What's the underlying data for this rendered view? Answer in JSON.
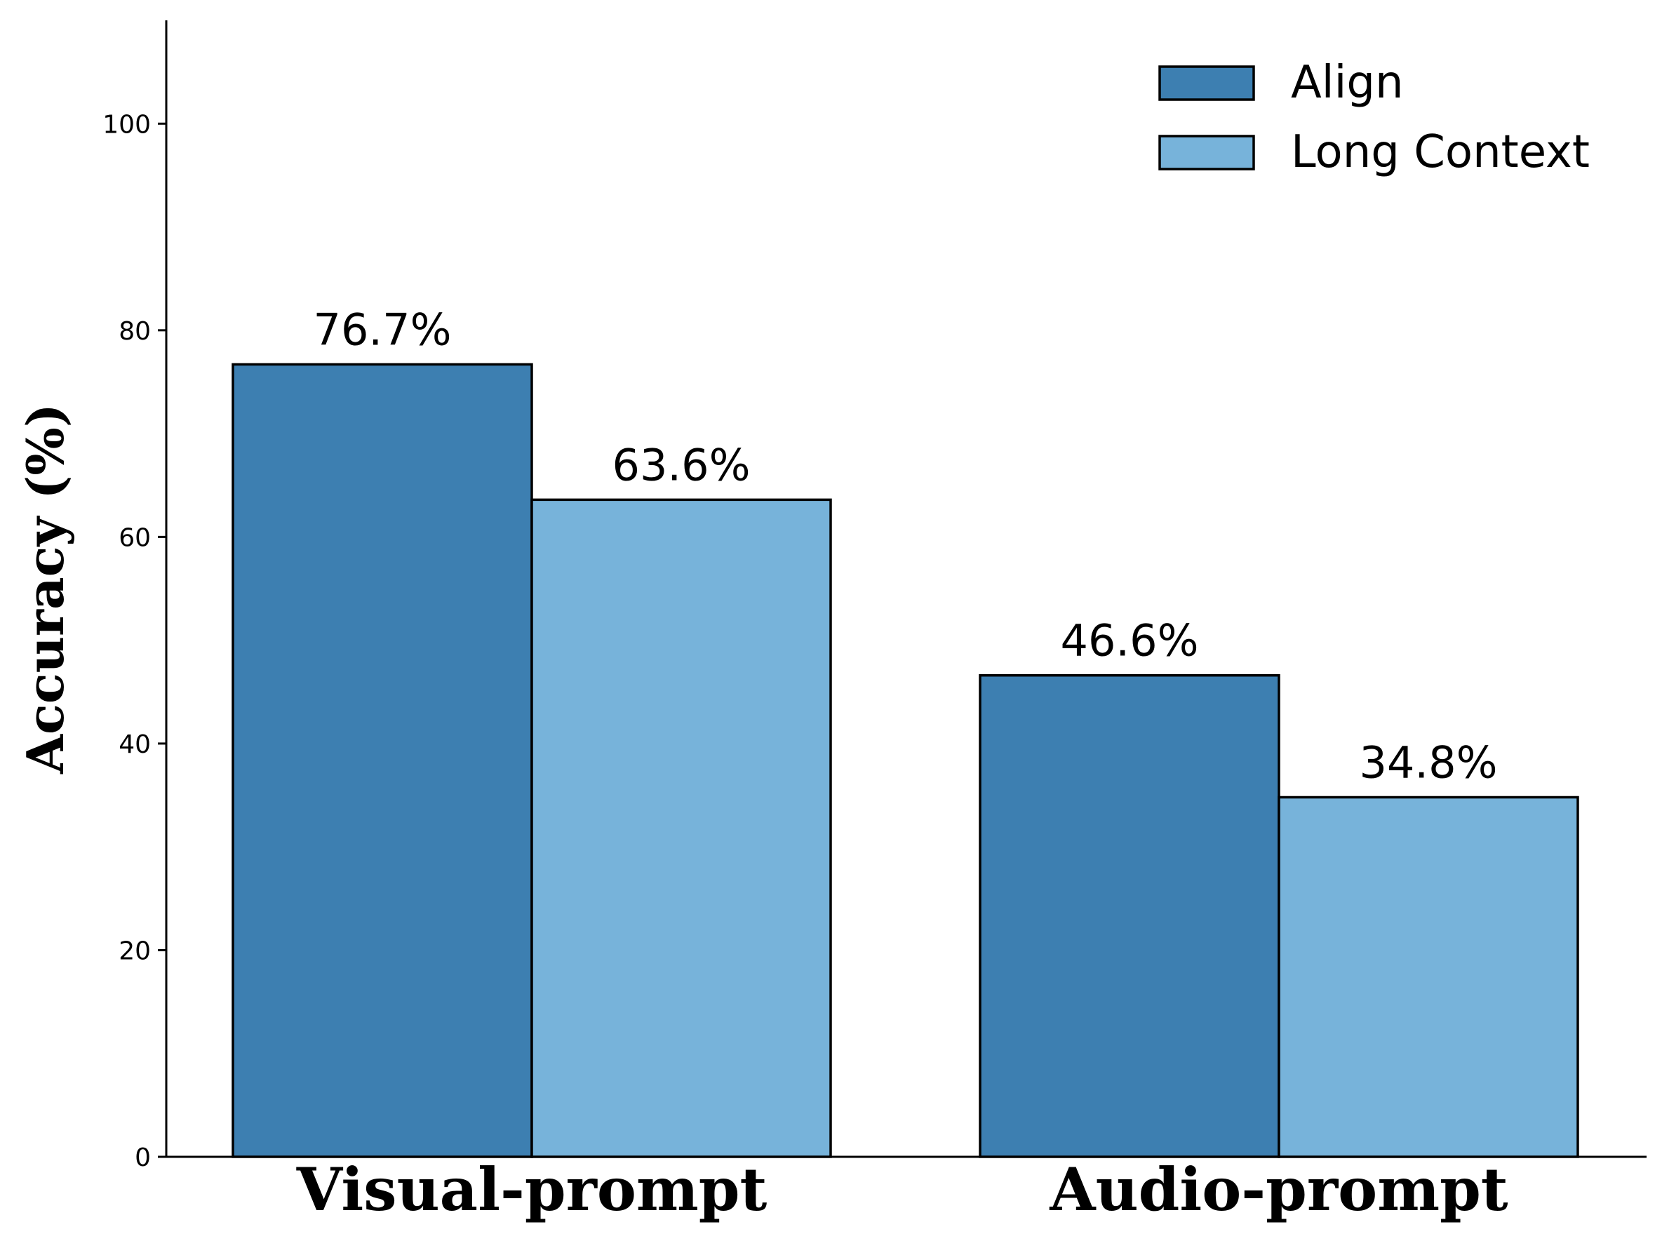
{
  "chart_data": {
    "type": "bar",
    "title": "",
    "xlabel": "",
    "ylabel": "Accuracy (%)",
    "categories": [
      "Visual-prompt",
      "Audio-prompt"
    ],
    "series": [
      {
        "name": "Align",
        "values": [
          76.7,
          46.6
        ],
        "labels": [
          "76.7%",
          "46.6%"
        ],
        "color": "#3d7fb1"
      },
      {
        "name": "Long Context",
        "values": [
          63.6,
          34.8
        ],
        "labels": [
          "63.6%",
          "34.8%"
        ],
        "color": "#77b3da"
      }
    ],
    "ylim": [
      0,
      110
    ],
    "yticks": [
      0,
      20,
      40,
      60,
      80,
      100
    ],
    "ytick_labels": [
      "0",
      "20",
      "40",
      "60",
      "80",
      "100"
    ],
    "grid": false,
    "legend_position": "top-right"
  }
}
